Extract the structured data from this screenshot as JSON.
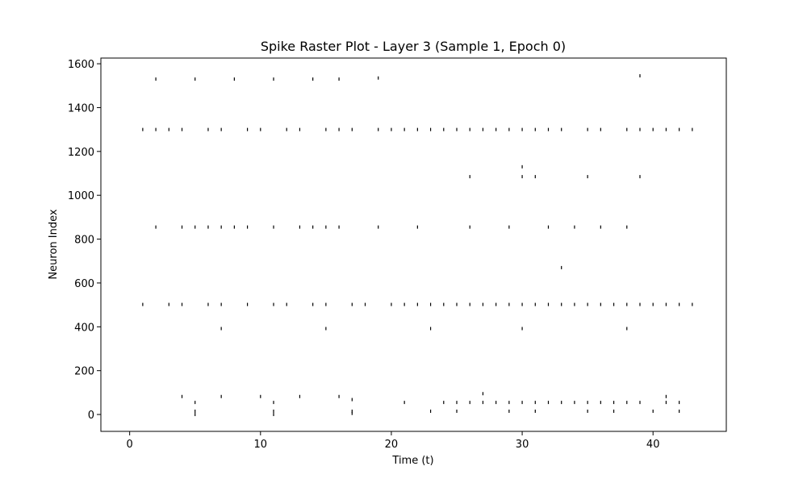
{
  "chart_data": {
    "type": "scatter",
    "title": "Spike Raster Plot - Layer 3 (Sample 1, Epoch 0)",
    "x_label": "Time (t)",
    "y_label": "Neuron Index",
    "color": "#000000",
    "x": [
      2,
      5,
      8,
      11,
      14,
      16,
      19,
      39,
      1,
      2,
      3,
      4,
      6,
      7,
      9,
      10,
      12,
      13,
      15,
      16,
      17,
      19,
      20,
      21,
      22,
      23,
      24,
      25,
      26,
      27,
      28,
      29,
      30,
      31,
      32,
      33,
      35,
      36,
      38,
      39,
      40,
      41,
      42,
      43,
      26,
      30,
      30,
      31,
      35,
      39,
      2,
      4,
      5,
      6,
      7,
      8,
      9,
      11,
      13,
      14,
      15,
      16,
      19,
      22,
      26,
      29,
      32,
      34,
      36,
      38,
      33,
      1,
      3,
      4,
      6,
      7,
      9,
      11,
      12,
      14,
      15,
      17,
      18,
      20,
      21,
      22,
      23,
      24,
      25,
      26,
      27,
      28,
      29,
      30,
      31,
      32,
      33,
      34,
      35,
      36,
      37,
      38,
      39,
      40,
      41,
      42,
      43,
      7,
      15,
      23,
      30,
      38,
      4,
      7,
      10,
      13,
      16,
      41,
      17,
      27,
      5,
      11,
      21,
      24,
      25,
      26,
      27,
      28,
      29,
      30,
      31,
      32,
      33,
      34,
      35,
      36,
      37,
      38,
      39,
      41,
      42,
      5,
      11,
      17,
      23,
      25,
      29,
      31,
      35,
      37,
      40,
      42,
      5,
      11,
      17
    ],
    "values": [
      1530,
      1530,
      1530,
      1530,
      1530,
      1530,
      1535,
      1545,
      1300,
      1300,
      1300,
      1300,
      1300,
      1300,
      1300,
      1300,
      1300,
      1300,
      1300,
      1300,
      1300,
      1300,
      1300,
      1300,
      1300,
      1300,
      1300,
      1300,
      1300,
      1300,
      1300,
      1300,
      1300,
      1300,
      1300,
      1300,
      1300,
      1300,
      1300,
      1300,
      1300,
      1300,
      1300,
      1300,
      1085,
      1085,
      1130,
      1085,
      1085,
      1085,
      855,
      855,
      855,
      855,
      855,
      855,
      855,
      855,
      855,
      855,
      855,
      855,
      855,
      855,
      855,
      855,
      855,
      855,
      855,
      855,
      670,
      502,
      502,
      502,
      502,
      502,
      502,
      502,
      502,
      502,
      502,
      502,
      502,
      502,
      502,
      502,
      502,
      502,
      502,
      502,
      502,
      502,
      502,
      502,
      502,
      502,
      502,
      502,
      502,
      502,
      502,
      502,
      502,
      502,
      502,
      502,
      502,
      392,
      392,
      392,
      392,
      392,
      82,
      82,
      82,
      82,
      82,
      82,
      68,
      95,
      55,
      55,
      55,
      55,
      55,
      55,
      55,
      55,
      55,
      55,
      55,
      55,
      55,
      55,
      55,
      55,
      55,
      55,
      55,
      55,
      55,
      15,
      15,
      15,
      15,
      15,
      15,
      15,
      15,
      15,
      15,
      15,
      0,
      0,
      5
    ],
    "xlim": [
      -2.2,
      45.6
    ],
    "xticks": [
      0,
      10,
      20,
      30,
      40
    ],
    "ylim": [
      -77,
      1626
    ],
    "yticks": [
      0,
      200,
      400,
      600,
      800,
      1000,
      1200,
      1400,
      1600
    ]
  }
}
